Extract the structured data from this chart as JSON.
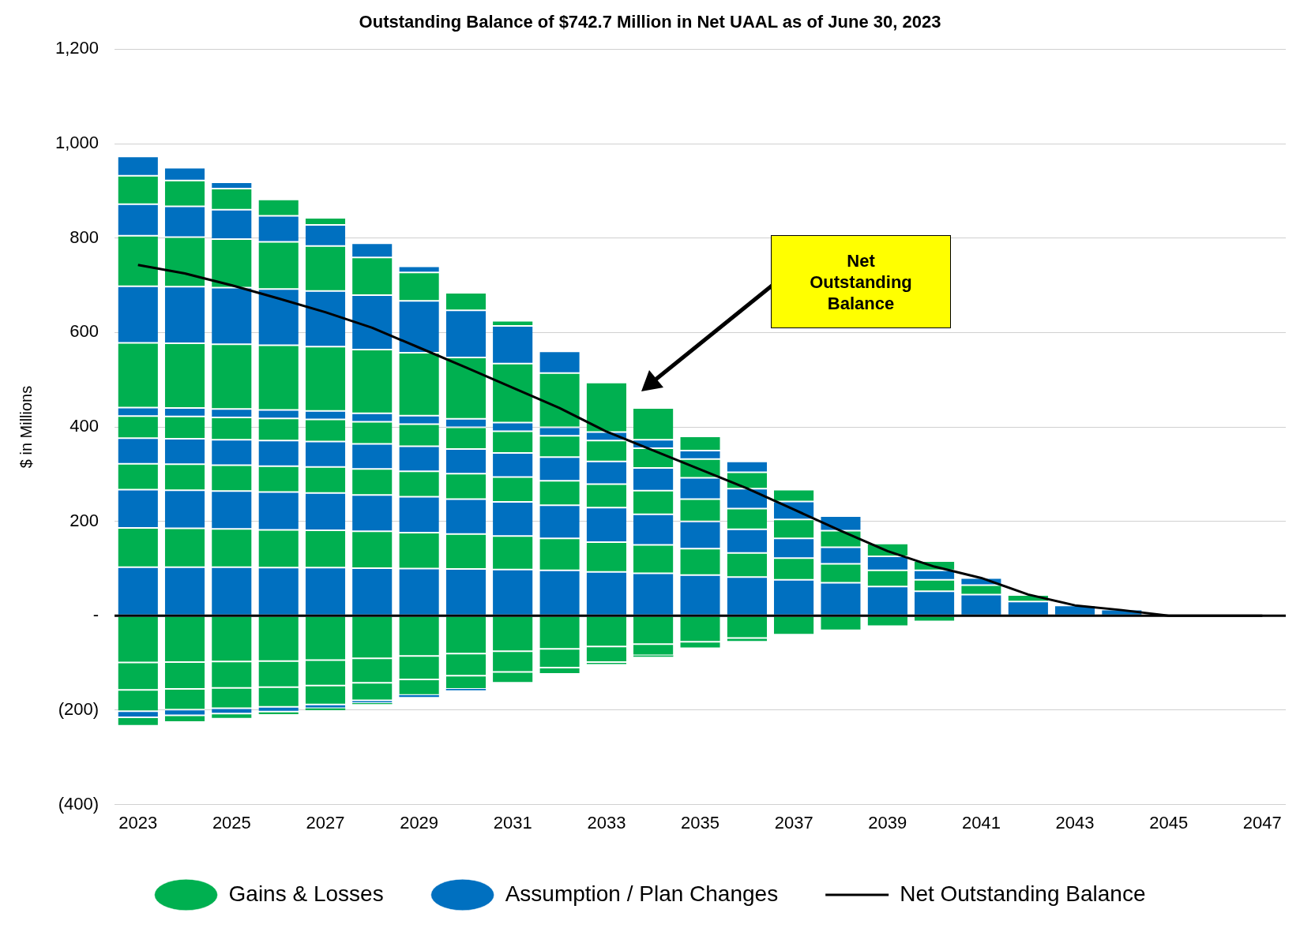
{
  "chart_data": {
    "type": "bar",
    "title": "Outstanding Balance of $742.7 Million in Net UAAL as of June 30, 2023",
    "ylabel": "$ in Millions",
    "categories": [
      "2023",
      null,
      "2025",
      null,
      "2027",
      null,
      "2029",
      null,
      "2031",
      null,
      "2033",
      null,
      "2035",
      null,
      "2037",
      null,
      "2039",
      null,
      "2041",
      null,
      "2043",
      null,
      "2045",
      null,
      "2047"
    ],
    "stacked": true,
    "ylim": [
      -400,
      1200
    ],
    "yticks": [
      {
        "value": -400,
        "label": "(400)"
      },
      {
        "value": -200,
        "label": "(200)"
      },
      {
        "value": 0,
        "label": "-"
      },
      200,
      400,
      600,
      800,
      {
        "value": 1000,
        "label": "1,000"
      },
      {
        "value": 1200,
        "label": "1,200"
      }
    ],
    "grid": "y",
    "legend": "bottom",
    "series": [
      {
        "name": "Assumption / Plan Changes",
        "color": "#0070c0",
        "values": [
          103,
          103,
          103,
          102,
          102,
          101,
          100,
          99,
          98,
          96,
          93,
          90,
          86,
          82,
          76,
          70,
          62,
          52,
          45,
          30,
          22,
          13,
          0,
          0,
          0
        ]
      },
      {
        "name": "Gains & Losses",
        "color": "#00b050",
        "values": [
          83,
          82,
          81,
          80,
          79,
          78,
          76,
          74,
          71,
          68,
          63,
          60,
          56,
          51,
          46,
          40,
          34,
          24,
          20,
          14,
          0,
          0,
          0,
          0,
          0
        ]
      },
      {
        "color": "#0070c0",
        "values": [
          81,
          81,
          80,
          80,
          79,
          77,
          76,
          74,
          72,
          70,
          73,
          65,
          58,
          50,
          42,
          35,
          30,
          20,
          15,
          0,
          0,
          0,
          0,
          0,
          0
        ]
      },
      {
        "color": "#00b050",
        "values": [
          55,
          55,
          55,
          55,
          55,
          55,
          54,
          54,
          53,
          52,
          50,
          50,
          47,
          44,
          40,
          35,
          27,
          20,
          0,
          0,
          0,
          0,
          0,
          0,
          0
        ]
      },
      {
        "color": "#0070c0",
        "values": [
          54,
          54,
          54,
          54,
          54,
          53,
          53,
          52,
          51,
          50,
          48,
          48,
          45,
          42,
          38,
          31,
          0,
          0,
          0,
          0,
          0,
          0,
          0,
          0,
          0
        ]
      },
      {
        "color": "#00b050",
        "values": [
          47,
          47,
          47,
          47,
          47,
          47,
          47,
          46,
          46,
          45,
          44,
          42,
          40,
          35,
          25,
          0,
          0,
          0,
          0,
          0,
          0,
          0,
          0,
          0,
          0
        ]
      },
      {
        "color": "#0070c0",
        "values": [
          18,
          18,
          18,
          18,
          18,
          18,
          18,
          18,
          18,
          18,
          18,
          18,
          18,
          23,
          0,
          0,
          0,
          0,
          0,
          0,
          0,
          0,
          0,
          0,
          0
        ]
      },
      {
        "color": "#00b050",
        "values": [
          137,
          137,
          137,
          137,
          136,
          135,
          133,
          130,
          125,
          115,
          105,
          67,
          30,
          0,
          0,
          0,
          0,
          0,
          0,
          0,
          0,
          0,
          0,
          0,
          0
        ]
      },
      {
        "color": "#0070c0",
        "values": [
          120,
          120,
          120,
          119,
          118,
          115,
          110,
          100,
          80,
          46,
          0,
          0,
          0,
          0,
          0,
          0,
          0,
          0,
          0,
          0,
          0,
          0,
          0,
          0,
          0
        ]
      },
      {
        "color": "#00b050",
        "values": [
          107,
          105,
          103,
          100,
          95,
          80,
          60,
          37,
          11,
          0,
          0,
          0,
          0,
          0,
          0,
          0,
          0,
          0,
          0,
          0,
          0,
          0,
          0,
          0,
          0
        ]
      },
      {
        "color": "#0070c0",
        "values": [
          67,
          65,
          62,
          55,
          45,
          30,
          13,
          0,
          0,
          0,
          0,
          0,
          0,
          0,
          0,
          0,
          0,
          0,
          0,
          0,
          0,
          0,
          0,
          0,
          0
        ]
      },
      {
        "color": "#00b050",
        "values": [
          60,
          55,
          45,
          35,
          15,
          0,
          0,
          0,
          0,
          0,
          0,
          0,
          0,
          0,
          0,
          0,
          0,
          0,
          0,
          0,
          0,
          0,
          0,
          0,
          0
        ]
      },
      {
        "color": "#0070c0",
        "values": [
          41,
          27,
          13,
          0,
          0,
          0,
          0,
          0,
          0,
          0,
          0,
          0,
          0,
          0,
          0,
          0,
          0,
          0,
          0,
          0,
          0,
          0,
          0,
          0,
          0
        ]
      },
      {
        "color": "#00b050",
        "values": [
          -99,
          -98,
          -97,
          -96,
          -94,
          -90,
          -85,
          -80,
          -75,
          -70,
          -65,
          -60,
          -55,
          -47,
          -40,
          -31,
          -22,
          -12,
          0,
          0,
          0,
          0,
          0,
          0,
          0
        ]
      },
      {
        "color": "#00b050",
        "values": [
          -58,
          -57,
          -56,
          -55,
          -54,
          -52,
          -50,
          -47,
          -44,
          -40,
          -33,
          -24,
          -14,
          -8,
          0,
          0,
          0,
          0,
          0,
          0,
          0,
          0,
          0,
          0,
          0
        ]
      },
      {
        "color": "#00b050",
        "values": [
          -45,
          -44,
          -43,
          -42,
          -40,
          -37,
          -33,
          -28,
          -23,
          -13,
          -6,
          -3,
          0,
          0,
          0,
          0,
          0,
          0,
          0,
          0,
          0,
          0,
          0,
          0,
          0
        ]
      },
      {
        "color": "#0070c0",
        "values": [
          -13,
          -12,
          -11,
          -10,
          -8,
          -6,
          -4,
          -3,
          0,
          0,
          0,
          0,
          0,
          0,
          0,
          0,
          0,
          0,
          0,
          0,
          0,
          0,
          0,
          0,
          0
        ]
      },
      {
        "color": "#00b050",
        "values": [
          -18,
          -14,
          -11,
          -7,
          -4,
          -2,
          0,
          0,
          0,
          0,
          0,
          0,
          0,
          0,
          0,
          0,
          0,
          0,
          0,
          0,
          0,
          0,
          0,
          0,
          0
        ]
      },
      {
        "name": "Net Outstanding Balance",
        "type": "line",
        "color": "#000000",
        "values": [
          743,
          725,
          700,
          672,
          643,
          610,
          568,
          526,
          483,
          440,
          390,
          350,
          310,
          270,
          225,
          180,
          137,
          104,
          80,
          45,
          22,
          12,
          0,
          0,
          0
        ]
      }
    ],
    "ref_lines": [
      {
        "axis": "y",
        "value": 0,
        "color": "#000000"
      }
    ],
    "annotations": [
      "Net Outstanding Balance"
    ]
  }
}
